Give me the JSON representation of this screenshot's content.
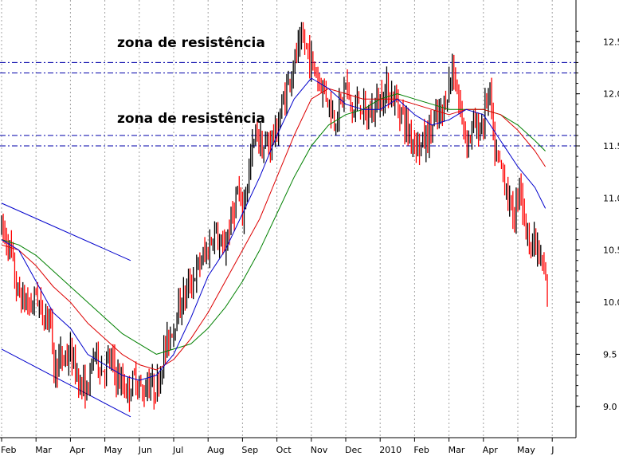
{
  "chart_data": {
    "type": "candlestick",
    "title": "",
    "xlabel": "",
    "ylabel": "",
    "ylim": [
      8.7,
      12.9
    ],
    "y_ticks": [
      9.0,
      9.5,
      10.0,
      10.5,
      11.0,
      11.5,
      12.0,
      12.5
    ],
    "y_tick_labels": [
      "9.0",
      "9.5",
      "10.0",
      "10.5",
      "11.0",
      "11.5",
      "12.0",
      "12.5"
    ],
    "x_tick_labels": [
      "Feb",
      "Mar",
      "Apr",
      "May",
      "Jun",
      "Jul",
      "Aug",
      "Sep",
      "Oct",
      "Nov",
      "Dec",
      "2010",
      "Feb",
      "Mar",
      "Apr",
      "May",
      "J"
    ],
    "grid": "vertical-dotted",
    "colors": {
      "up": "#000000",
      "down": "#ff0000",
      "ma_short": "#0000cc",
      "ma_mid": "#dd0000",
      "ma_long": "#008000",
      "channel": "#0000cc",
      "resistance": "#0000aa"
    },
    "resistance_levels": [
      12.3,
      12.2,
      11.6,
      11.5
    ],
    "annotations": [
      {
        "text": "zona de resistência",
        "y": 12.45
      },
      {
        "text": "zona de resistência",
        "y": 11.72
      }
    ],
    "price_path": [
      [
        0,
        10.7
      ],
      [
        0.15,
        10.6
      ],
      [
        0.3,
        10.45
      ],
      [
        0.4,
        10.15
      ],
      [
        0.55,
        10.05
      ],
      [
        0.7,
        10.0
      ],
      [
        0.85,
        9.95
      ],
      [
        1.0,
        10.1
      ],
      [
        1.2,
        9.85
      ],
      [
        1.4,
        9.95
      ],
      [
        1.5,
        9.35
      ],
      [
        1.7,
        9.45
      ],
      [
        2.0,
        9.5
      ],
      [
        2.3,
        9.2
      ],
      [
        2.5,
        9.15
      ],
      [
        2.7,
        9.55
      ],
      [
        2.9,
        9.35
      ],
      [
        3.15,
        9.45
      ],
      [
        3.4,
        9.25
      ],
      [
        3.7,
        9.15
      ],
      [
        3.9,
        9.3
      ],
      [
        4.1,
        9.1
      ],
      [
        4.25,
        9.25
      ],
      [
        4.5,
        9.15
      ],
      [
        4.7,
        9.5
      ],
      [
        4.9,
        9.7
      ],
      [
        5.1,
        9.9
      ],
      [
        5.35,
        10.1
      ],
      [
        5.6,
        10.25
      ],
      [
        5.8,
        10.4
      ],
      [
        6.0,
        10.5
      ],
      [
        6.2,
        10.7
      ],
      [
        6.4,
        10.45
      ],
      [
        6.65,
        10.75
      ],
      [
        6.85,
        11.05
      ],
      [
        7.0,
        10.85
      ],
      [
        7.2,
        11.3
      ],
      [
        7.4,
        11.65
      ],
      [
        7.6,
        11.45
      ],
      [
        7.8,
        11.55
      ],
      [
        8.0,
        11.65
      ],
      [
        8.2,
        11.95
      ],
      [
        8.4,
        12.2
      ],
      [
        8.6,
        12.4
      ],
      [
        8.8,
        12.5
      ],
      [
        9.0,
        12.3
      ],
      [
        9.2,
        12.15
      ],
      [
        9.45,
        12.0
      ],
      [
        9.65,
        11.75
      ],
      [
        9.85,
        11.9
      ],
      [
        10.0,
        12.1
      ],
      [
        10.2,
        11.8
      ],
      [
        10.4,
        11.95
      ],
      [
        10.6,
        11.75
      ],
      [
        10.8,
        11.85
      ],
      [
        11.0,
        11.95
      ],
      [
        11.2,
        12.05
      ],
      [
        11.4,
        11.95
      ],
      [
        11.6,
        11.85
      ],
      [
        11.8,
        11.65
      ],
      [
        12.0,
        11.55
      ],
      [
        12.2,
        11.5
      ],
      [
        12.4,
        11.6
      ],
      [
        12.6,
        11.75
      ],
      [
        12.8,
        11.8
      ],
      [
        13.0,
        12.1
      ],
      [
        13.1,
        12.25
      ],
      [
        13.25,
        12.0
      ],
      [
        13.4,
        11.7
      ],
      [
        13.55,
        11.55
      ],
      [
        13.7,
        11.7
      ],
      [
        13.85,
        11.65
      ],
      [
        14.0,
        11.75
      ],
      [
        14.1,
        11.95
      ],
      [
        14.2,
        12.0
      ],
      [
        14.3,
        11.45
      ],
      [
        14.45,
        11.35
      ],
      [
        14.6,
        11.2
      ],
      [
        14.75,
        10.95
      ],
      [
        14.9,
        10.8
      ],
      [
        15.05,
        11.2
      ],
      [
        15.2,
        10.75
      ],
      [
        15.35,
        10.6
      ],
      [
        15.5,
        10.55
      ],
      [
        15.65,
        10.4
      ],
      [
        15.8,
        10.2
      ],
      [
        15.9,
        9.9
      ]
    ],
    "ma_short": [
      [
        0,
        10.6
      ],
      [
        0.5,
        10.5
      ],
      [
        1.0,
        10.2
      ],
      [
        1.5,
        9.9
      ],
      [
        2.0,
        9.75
      ],
      [
        2.5,
        9.5
      ],
      [
        3.0,
        9.4
      ],
      [
        3.5,
        9.3
      ],
      [
        4.0,
        9.25
      ],
      [
        4.5,
        9.3
      ],
      [
        5.0,
        9.5
      ],
      [
        5.5,
        9.85
      ],
      [
        6.0,
        10.25
      ],
      [
        6.5,
        10.5
      ],
      [
        7.0,
        10.85
      ],
      [
        7.5,
        11.2
      ],
      [
        8.0,
        11.6
      ],
      [
        8.5,
        11.95
      ],
      [
        9.0,
        12.15
      ],
      [
        9.5,
        12.05
      ],
      [
        10.0,
        11.9
      ],
      [
        10.5,
        11.85
      ],
      [
        11.0,
        11.85
      ],
      [
        11.5,
        11.95
      ],
      [
        12.0,
        11.8
      ],
      [
        12.5,
        11.7
      ],
      [
        13.0,
        11.75
      ],
      [
        13.5,
        11.85
      ],
      [
        14.0,
        11.8
      ],
      [
        14.5,
        11.55
      ],
      [
        15.0,
        11.3
      ],
      [
        15.5,
        11.1
      ],
      [
        15.8,
        10.9
      ]
    ],
    "ma_mid": [
      [
        0,
        10.55
      ],
      [
        0.5,
        10.5
      ],
      [
        1.0,
        10.35
      ],
      [
        1.5,
        10.15
      ],
      [
        2.0,
        10.0
      ],
      [
        2.5,
        9.8
      ],
      [
        3.0,
        9.65
      ],
      [
        3.5,
        9.5
      ],
      [
        4.0,
        9.4
      ],
      [
        4.5,
        9.35
      ],
      [
        5.0,
        9.45
      ],
      [
        5.5,
        9.65
      ],
      [
        6.0,
        9.9
      ],
      [
        6.5,
        10.2
      ],
      [
        7.0,
        10.5
      ],
      [
        7.5,
        10.8
      ],
      [
        8.0,
        11.2
      ],
      [
        8.5,
        11.6
      ],
      [
        9.0,
        11.95
      ],
      [
        9.5,
        12.05
      ],
      [
        10.0,
        12.0
      ],
      [
        10.5,
        11.95
      ],
      [
        11.0,
        11.95
      ],
      [
        11.5,
        11.95
      ],
      [
        12.0,
        11.9
      ],
      [
        12.5,
        11.85
      ],
      [
        13.0,
        11.8
      ],
      [
        13.5,
        11.85
      ],
      [
        14.0,
        11.85
      ],
      [
        14.5,
        11.8
      ],
      [
        15.0,
        11.65
      ],
      [
        15.5,
        11.45
      ],
      [
        15.8,
        11.3
      ]
    ],
    "ma_long": [
      [
        0,
        10.6
      ],
      [
        0.5,
        10.55
      ],
      [
        1.0,
        10.45
      ],
      [
        1.5,
        10.3
      ],
      [
        2.0,
        10.15
      ],
      [
        2.5,
        10.0
      ],
      [
        3.0,
        9.85
      ],
      [
        3.5,
        9.7
      ],
      [
        4.0,
        9.6
      ],
      [
        4.5,
        9.5
      ],
      [
        5.0,
        9.55
      ],
      [
        5.5,
        9.6
      ],
      [
        6.0,
        9.75
      ],
      [
        6.5,
        9.95
      ],
      [
        7.0,
        10.2
      ],
      [
        7.5,
        10.5
      ],
      [
        8.0,
        10.85
      ],
      [
        8.5,
        11.2
      ],
      [
        9.0,
        11.5
      ],
      [
        9.5,
        11.7
      ],
      [
        10.0,
        11.8
      ],
      [
        10.5,
        11.85
      ],
      [
        11.0,
        11.95
      ],
      [
        11.5,
        12.0
      ],
      [
        12.0,
        11.95
      ],
      [
        12.5,
        11.9
      ],
      [
        13.0,
        11.85
      ],
      [
        13.5,
        11.85
      ],
      [
        14.0,
        11.85
      ],
      [
        14.5,
        11.8
      ],
      [
        15.0,
        11.7
      ],
      [
        15.5,
        11.55
      ],
      [
        15.8,
        11.45
      ]
    ],
    "channel_lines": [
      {
        "from": [
          0,
          10.95
        ],
        "to": [
          3.75,
          10.4
        ]
      },
      {
        "from": [
          0,
          9.55
        ],
        "to": [
          3.75,
          8.9
        ]
      }
    ]
  }
}
